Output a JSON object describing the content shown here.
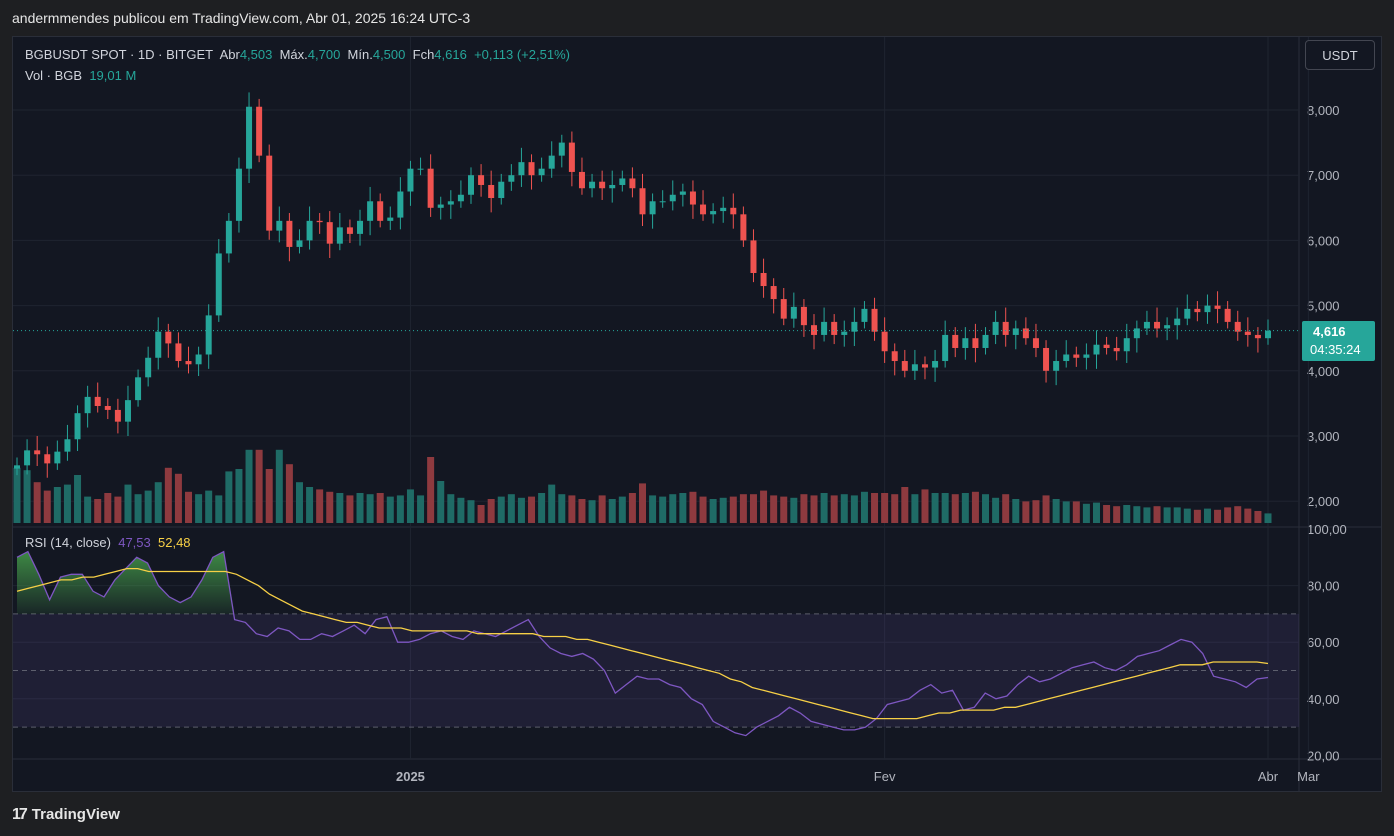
{
  "header": {
    "title": "andermmendes publicou em TradingView.com, Abr 01, 2025 16:24 UTC-3"
  },
  "legend": {
    "symbol": "BGBUSDT SPOT · 1D · BITGET",
    "open_label": "Abr",
    "open": "4,503",
    "high_label": "Máx.",
    "high": "4,700",
    "low_label": "Mín.",
    "low": "4,500",
    "close_label": "Fch",
    "close": "4,616",
    "change": "+0,113 (+2,51%)",
    "vol_label": "Vol · BGB",
    "vol_value": "19,01 M"
  },
  "currency_button": "USDT",
  "last_price": {
    "price": "4,616",
    "countdown": "04:35:24"
  },
  "rsi_legend": {
    "label": "RSI (14, close)",
    "rsi": "47,53",
    "ma": "52,48"
  },
  "footer": {
    "brand": "TradingView"
  },
  "colors": {
    "up": "#26a69a",
    "down": "#ef5350",
    "vol_up": "#1f6b66",
    "vol_down": "#8e3a3f",
    "rsi": "#7e57c2",
    "rsi_ma": "#f7d046"
  },
  "chart_data": [
    {
      "type": "candlestick",
      "x_axis_labels": [
        "2025",
        "Fev",
        "Mar",
        "Abr"
      ],
      "y_tick_labels": [
        "8,000",
        "7,000",
        "6,000",
        "5,000",
        "4,000",
        "3,000",
        "2,000"
      ],
      "ylim": [
        1.7,
        8.8
      ],
      "closes": [
        2.55,
        2.78,
        2.72,
        2.58,
        2.76,
        2.95,
        3.35,
        3.6,
        3.46,
        3.4,
        3.22,
        3.55,
        3.9,
        4.2,
        4.6,
        4.42,
        4.15,
        4.1,
        4.25,
        4.85,
        5.8,
        6.3,
        7.1,
        8.05,
        7.3,
        6.15,
        6.3,
        5.9,
        6.0,
        6.3,
        6.28,
        5.95,
        6.2,
        6.1,
        6.3,
        6.6,
        6.3,
        6.35,
        6.75,
        7.1,
        7.1,
        6.5,
        6.55,
        6.6,
        6.7,
        7.0,
        6.85,
        6.65,
        6.9,
        7.0,
        7.2,
        7.0,
        7.1,
        7.3,
        7.5,
        7.05,
        6.8,
        6.9,
        6.8,
        6.85,
        6.95,
        6.8,
        6.4,
        6.6,
        6.6,
        6.7,
        6.75,
        6.55,
        6.4,
        6.45,
        6.5,
        6.4,
        6.0,
        5.5,
        5.3,
        5.1,
        4.8,
        4.98,
        4.7,
        4.55,
        4.75,
        4.55,
        4.6,
        4.75,
        4.95,
        4.6,
        4.3,
        4.15,
        4.0,
        4.1,
        4.05,
        4.15,
        4.55,
        4.35,
        4.5,
        4.35,
        4.55,
        4.75,
        4.55,
        4.65,
        4.5,
        4.35,
        4.0,
        4.15,
        4.25,
        4.2,
        4.25,
        4.4,
        4.35,
        4.3,
        4.5,
        4.65,
        4.75,
        4.65,
        4.7,
        4.8,
        4.95,
        4.9,
        5.0,
        4.95,
        4.75,
        4.6,
        4.55,
        4.5,
        4.616
      ],
      "volume_ylim": [
        0,
        1
      ],
      "volumes": [
        0.46,
        0.44,
        0.34,
        0.27,
        0.3,
        0.32,
        0.4,
        0.22,
        0.2,
        0.25,
        0.22,
        0.32,
        0.24,
        0.27,
        0.34,
        0.46,
        0.41,
        0.26,
        0.24,
        0.27,
        0.23,
        0.43,
        0.45,
        0.61,
        0.61,
        0.45,
        0.61,
        0.49,
        0.34,
        0.3,
        0.28,
        0.26,
        0.25,
        0.23,
        0.25,
        0.24,
        0.25,
        0.22,
        0.23,
        0.28,
        0.23,
        0.55,
        0.35,
        0.24,
        0.21,
        0.19,
        0.15,
        0.2,
        0.22,
        0.24,
        0.21,
        0.22,
        0.25,
        0.32,
        0.24,
        0.23,
        0.2,
        0.19,
        0.23,
        0.2,
        0.22,
        0.25,
        0.33,
        0.23,
        0.22,
        0.24,
        0.25,
        0.26,
        0.22,
        0.2,
        0.21,
        0.22,
        0.24,
        0.24,
        0.27,
        0.23,
        0.22,
        0.21,
        0.24,
        0.23,
        0.25,
        0.23,
        0.24,
        0.23,
        0.26,
        0.25,
        0.25,
        0.24,
        0.3,
        0.24,
        0.28,
        0.25,
        0.25,
        0.24,
        0.25,
        0.26,
        0.24,
        0.21,
        0.24,
        0.2,
        0.18,
        0.19,
        0.23,
        0.2,
        0.18,
        0.18,
        0.16,
        0.17,
        0.15,
        0.14,
        0.15,
        0.14,
        0.13,
        0.14,
        0.13,
        0.13,
        0.12,
        0.11,
        0.12,
        0.11,
        0.13,
        0.14,
        0.12,
        0.1,
        0.08
      ]
    },
    {
      "type": "line",
      "y_tick_labels": [
        "100,00",
        "80,00",
        "60,00",
        "40,00",
        "20,00"
      ],
      "ylim": [
        20,
        100
      ],
      "bands": {
        "upper": 70,
        "middle": 50,
        "lower": 30
      },
      "series": [
        {
          "name": "RSI",
          "values": [
            90,
            92,
            84,
            75,
            83,
            84,
            84,
            78,
            76,
            82,
            86,
            90,
            88,
            80,
            76,
            74,
            76,
            82,
            90,
            92,
            68,
            67,
            63,
            62,
            65,
            64,
            61,
            61,
            63,
            62,
            64,
            66,
            63,
            68,
            69,
            60,
            60,
            61,
            63,
            64,
            62,
            61,
            64,
            63,
            62,
            64,
            66,
            68,
            62,
            58,
            56,
            55,
            56,
            54,
            50,
            42,
            45,
            48,
            47,
            47,
            45,
            44,
            40,
            38,
            32,
            30,
            28,
            27,
            30,
            32,
            34,
            37,
            35,
            32,
            31,
            30,
            29,
            29,
            30,
            33,
            38,
            39,
            40,
            43,
            45,
            42,
            43,
            36,
            37,
            42,
            40,
            41,
            45,
            48,
            46,
            47,
            49,
            51,
            52,
            53,
            51,
            50,
            52,
            55,
            56,
            57,
            59,
            61,
            60,
            56,
            48,
            47,
            46,
            44,
            47,
            47.53
          ]
        },
        {
          "name": "MA",
          "values": [
            78,
            79,
            80,
            81,
            82,
            82,
            83,
            83,
            84,
            85,
            86,
            86,
            85,
            85,
            85,
            85,
            85,
            85,
            85,
            85,
            84,
            82,
            80,
            77,
            75,
            73,
            71,
            70,
            69,
            68,
            67,
            67,
            66,
            65,
            65,
            65,
            64,
            64,
            64,
            64,
            64,
            64,
            63,
            63,
            63,
            63,
            63,
            63,
            62,
            62,
            62,
            61,
            61,
            60,
            59,
            58,
            57,
            56,
            55,
            54,
            53,
            52,
            51,
            50,
            49,
            47,
            46,
            44,
            43,
            42,
            41,
            40,
            39,
            38,
            37,
            36,
            35,
            34,
            33,
            33,
            33,
            33,
            33,
            34,
            35,
            35,
            36,
            36,
            36,
            36,
            37,
            37,
            38,
            39,
            40,
            41,
            42,
            43,
            44,
            45,
            46,
            47,
            48,
            49,
            50,
            51,
            52,
            52,
            52,
            53,
            53,
            53,
            53,
            53,
            52.48
          ]
        }
      ]
    }
  ]
}
